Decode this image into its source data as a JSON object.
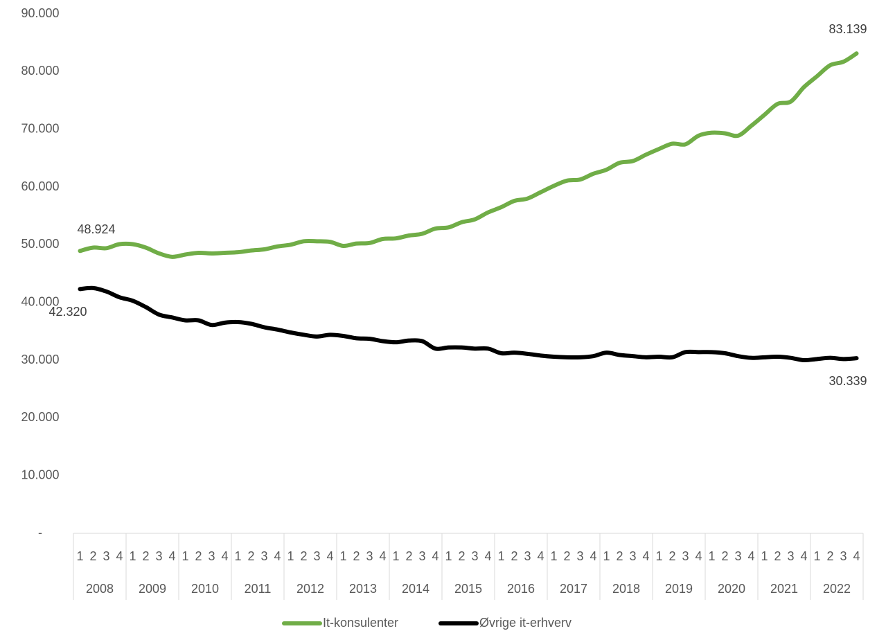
{
  "chart_data": {
    "type": "line",
    "categories": [
      "1",
      "2",
      "3",
      "4",
      "1",
      "2",
      "3",
      "4",
      "1",
      "2",
      "3",
      "4",
      "1",
      "2",
      "3",
      "4",
      "1",
      "2",
      "3",
      "4",
      "1",
      "2",
      "3",
      "4",
      "1",
      "2",
      "3",
      "4",
      "1",
      "2",
      "3",
      "4",
      "1",
      "2",
      "3",
      "4",
      "1",
      "2",
      "3",
      "4",
      "1",
      "2",
      "3",
      "4",
      "1",
      "2",
      "3",
      "4",
      "1",
      "2",
      "3",
      "4",
      "1",
      "2",
      "3",
      "4",
      "1",
      "2",
      "3",
      "4"
    ],
    "years": [
      "2008",
      "2009",
      "2010",
      "2011",
      "2012",
      "2013",
      "2014",
      "2015",
      "2016",
      "2017",
      "2018",
      "2019",
      "2020",
      "2021",
      "2022"
    ],
    "series": [
      {
        "name": "It-konsulenter",
        "color": "#70ad47",
        "values": [
          48924,
          49500,
          49400,
          50100,
          50100,
          49500,
          48500,
          47900,
          48300,
          48600,
          48500,
          48600,
          48700,
          49000,
          49200,
          49700,
          50000,
          50600,
          50600,
          50500,
          49800,
          50200,
          50300,
          51000,
          51100,
          51600,
          51900,
          52800,
          53000,
          53900,
          54400,
          55600,
          56500,
          57600,
          58000,
          59100,
          60200,
          61100,
          61300,
          62300,
          63000,
          64200,
          64500,
          65600,
          66600,
          67500,
          67400,
          68900,
          69400,
          69300,
          68900,
          70600,
          72500,
          74400,
          74800,
          77300,
          79200,
          81100,
          81700,
          83139
        ],
        "value_labels": [
          "48.924",
          null,
          null,
          null,
          null,
          null,
          null,
          null,
          null,
          null,
          null,
          null,
          null,
          null,
          null,
          null,
          null,
          null,
          null,
          null,
          null,
          null,
          null,
          null,
          null,
          null,
          null,
          null,
          null,
          null,
          null,
          null,
          null,
          null,
          null,
          null,
          null,
          null,
          null,
          null,
          null,
          null,
          null,
          null,
          null,
          null,
          null,
          null,
          null,
          null,
          null,
          null,
          null,
          null,
          null,
          null,
          null,
          null,
          null,
          "83.139"
        ]
      },
      {
        "name": "Øvrige it-erhverv",
        "color": "#000000",
        "values": [
          42320,
          42500,
          41900,
          40900,
          40300,
          39200,
          37900,
          37400,
          36900,
          36900,
          36100,
          36500,
          36600,
          36300,
          35700,
          35300,
          34800,
          34400,
          34100,
          34400,
          34200,
          33800,
          33700,
          33300,
          33100,
          33400,
          33300,
          32000,
          32200,
          32200,
          32000,
          32000,
          31200,
          31300,
          31100,
          30800,
          30600,
          30500,
          30500,
          30700,
          31300,
          30900,
          30700,
          30500,
          30600,
          30500,
          31400,
          31400,
          31400,
          31200,
          30700,
          30400,
          30500,
          30600,
          30400,
          30000,
          30200,
          30400,
          30200,
          30339
        ],
        "value_labels": [
          "42.320",
          null,
          null,
          null,
          null,
          null,
          null,
          null,
          null,
          null,
          null,
          null,
          null,
          null,
          null,
          null,
          null,
          null,
          null,
          null,
          null,
          null,
          null,
          null,
          null,
          null,
          null,
          null,
          null,
          null,
          null,
          null,
          null,
          null,
          null,
          null,
          null,
          null,
          null,
          null,
          null,
          null,
          null,
          null,
          null,
          null,
          null,
          null,
          null,
          null,
          null,
          null,
          null,
          null,
          null,
          null,
          null,
          null,
          null,
          "30.339"
        ]
      }
    ],
    "ylim": [
      0,
      90000
    ],
    "yticks": [
      {
        "value": 0,
        "label": "-"
      },
      {
        "value": 10000,
        "label": "10.000"
      },
      {
        "value": 20000,
        "label": "20.000"
      },
      {
        "value": 30000,
        "label": "30.000"
      },
      {
        "value": 40000,
        "label": "40.000"
      },
      {
        "value": 50000,
        "label": "50.000"
      },
      {
        "value": 60000,
        "label": "60.000"
      },
      {
        "value": 70000,
        "label": "70.000"
      },
      {
        "value": 80000,
        "label": "80.000"
      },
      {
        "value": 90000,
        "label": "90.000"
      }
    ],
    "grid": false,
    "legend": "bottom"
  }
}
